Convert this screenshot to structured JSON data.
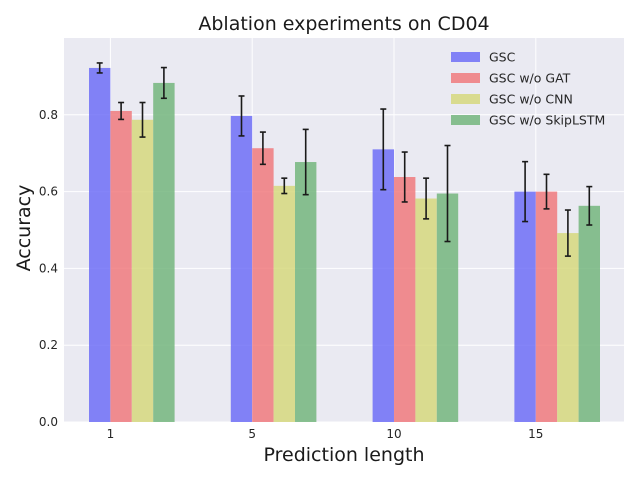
{
  "chart_data": {
    "type": "bar",
    "title": "Ablation experiments on CD04",
    "xlabel": "Prediction length",
    "ylabel": "Accuracy",
    "categories": [
      "1",
      "5",
      "10",
      "15"
    ],
    "ylim": [
      0,
      1.0
    ],
    "yticks": [
      "0.0",
      "0.2",
      "0.4",
      "0.6",
      "0.8"
    ],
    "grid": true,
    "legend_position": "top-right",
    "series": [
      {
        "name": "GSC",
        "color": "#6f6ff7",
        "values": [
          0.922,
          0.797,
          0.71,
          0.6
        ],
        "errors": [
          0.013,
          0.052,
          0.105,
          0.078
        ]
      },
      {
        "name": "GSC w/o GAT",
        "color": "#f07a7e",
        "values": [
          0.81,
          0.713,
          0.638,
          0.6
        ],
        "errors": [
          0.022,
          0.042,
          0.065,
          0.045
        ]
      },
      {
        "name": "GSC w/o CNN",
        "color": "#d6d87e",
        "values": [
          0.787,
          0.615,
          0.582,
          0.492
        ],
        "errors": [
          0.045,
          0.02,
          0.053,
          0.06
        ]
      },
      {
        "name": "GSC w/o SkipLSTM",
        "color": "#74b67e",
        "values": [
          0.883,
          0.677,
          0.595,
          0.563
        ],
        "errors": [
          0.04,
          0.085,
          0.125,
          0.05
        ]
      }
    ]
  }
}
